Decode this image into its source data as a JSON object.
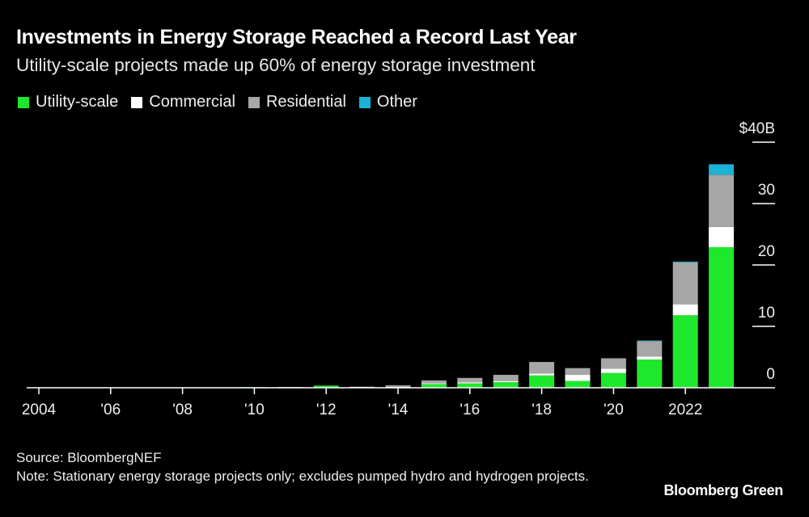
{
  "chart_data": {
    "type": "bar",
    "stacked": true,
    "title": "Investments in Energy Storage Reached a Record Last Year",
    "subtitle": "Utility-scale projects made up 60% of energy storage investment",
    "xlabel": "",
    "ylabel": "",
    "ylim": [
      0,
      40
    ],
    "y_ticks": [
      0,
      10,
      20,
      30,
      40
    ],
    "y_tick_labels": [
      "0",
      "10",
      "20",
      "30",
      "$40B"
    ],
    "x_ticks": [
      2004,
      2006,
      2008,
      2010,
      2012,
      2014,
      2016,
      2018,
      2020,
      2022
    ],
    "x_tick_labels": [
      "2004",
      "'06",
      "'08",
      "'10",
      "'12",
      "'14",
      "'16",
      "'18",
      "'20",
      "2022"
    ],
    "categories": [
      2004,
      2005,
      2006,
      2007,
      2008,
      2009,
      2010,
      2011,
      2012,
      2013,
      2014,
      2015,
      2016,
      2017,
      2018,
      2019,
      2020,
      2021,
      2022,
      2023
    ],
    "legend_position": "top-left",
    "series": [
      {
        "name": "Utility-scale",
        "color": "#1ee82c",
        "values": [
          0,
          0,
          0,
          0,
          0,
          0,
          0.1,
          0.1,
          0.35,
          0.05,
          0.1,
          0.6,
          0.7,
          0.9,
          2.0,
          1.1,
          2.4,
          4.6,
          11.8,
          22.9
        ]
      },
      {
        "name": "Commercial",
        "color": "#ffffff",
        "values": [
          0,
          0,
          0,
          0,
          0,
          0,
          0,
          0,
          0,
          0.02,
          0.05,
          0.15,
          0.2,
          0.2,
          0.3,
          1.0,
          0.7,
          0.5,
          1.8,
          3.3
        ]
      },
      {
        "name": "Residential",
        "color": "#a6a6a6",
        "values": [
          0,
          0,
          0,
          0,
          0,
          0,
          0,
          0.02,
          0,
          0.1,
          0.25,
          0.45,
          0.7,
          1.0,
          1.9,
          1.1,
          1.7,
          2.5,
          6.8,
          8.5
        ]
      },
      {
        "name": "Other",
        "color": "#1ab2d6",
        "values": [
          0,
          0,
          0,
          0,
          0,
          0,
          0,
          0,
          0,
          0,
          0,
          0,
          0,
          0,
          0,
          0,
          0,
          0.1,
          0.15,
          1.7
        ]
      }
    ]
  },
  "legend": [
    {
      "label": "Utility-scale",
      "color": "#1ee82c"
    },
    {
      "label": "Commercial",
      "color": "#ffffff"
    },
    {
      "label": "Residential",
      "color": "#a6a6a6"
    },
    {
      "label": "Other",
      "color": "#1ab2d6"
    }
  ],
  "footer": {
    "source": "Source: BloombergNEF",
    "note": "Note: Stationary energy storage projects only; excludes pumped hydro and hydrogen projects."
  },
  "brand": "Bloomberg Green"
}
